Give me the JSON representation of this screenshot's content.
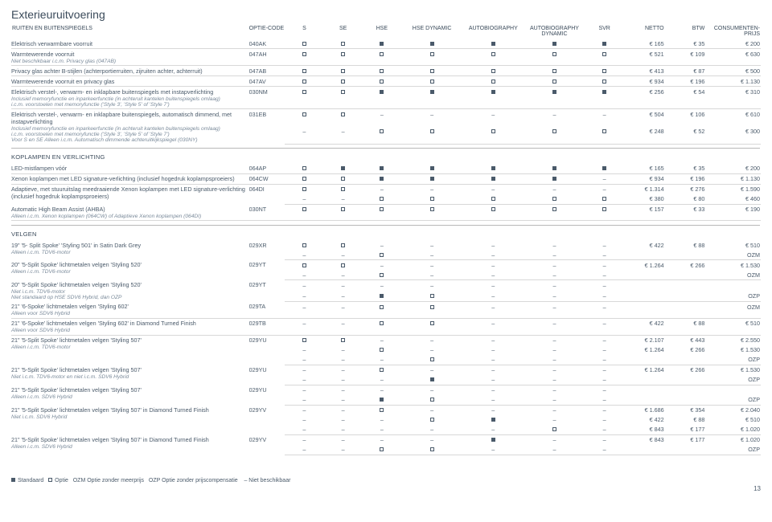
{
  "title": "Exterieuruitvoering",
  "cols": {
    "label": "RUITEN EN BUITENSPIEGELS",
    "code": "OPTIE-CODE",
    "c1": "S",
    "c2": "SE",
    "c3": "HSE",
    "c4": "HSE DYNAMIC",
    "c5": "AUTOBIOGRAPHY",
    "c6": "AUTOBIOGRAPHY DYNAMIC",
    "c7": "SVR",
    "netto": "NETTO",
    "btw": "BTW",
    "prijs": "CONSUMENTEN-PRIJS"
  },
  "sections": [
    {
      "head": null,
      "rows": [
        {
          "l": "Elektrisch verwarmbare voorruit",
          "code": "040AK",
          "m": [
            "o",
            "o",
            "f",
            "f",
            "f",
            "f",
            "f"
          ],
          "p": [
            "€ 165",
            "€ 35",
            "€ 200"
          ]
        },
        {
          "l": "Warmtewerende voorruit",
          "n": "Niet beschikbaar i.c.m. Privacy glas (047AB)",
          "code": "047AH",
          "m": [
            "o",
            "o",
            "o",
            "o",
            "o",
            "o",
            "o"
          ],
          "p": [
            "€ 521",
            "€ 109",
            "€ 630"
          ]
        },
        {
          "l": "Privacy glas achter B-stijlen (achterportierruiten, zijruiten achter, achterruit)",
          "code": "047AB",
          "m": [
            "o",
            "o",
            "o",
            "o",
            "o",
            "o",
            "o"
          ],
          "p": [
            "€ 413",
            "€ 87",
            "€ 500"
          ]
        },
        {
          "l": "Warmtewerende voorruit en privacy glas",
          "code": "047AV",
          "m": [
            "o",
            "o",
            "o",
            "o",
            "o",
            "o",
            "o"
          ],
          "p": [
            "€ 934",
            "€ 196",
            "€ 1.130"
          ]
        },
        {
          "l": "Elektrisch verstel-, verwarm- en inklapbare buitenspiegels met instapverlichting",
          "n": "Inclusief memoryfunctie en inparkeerfunctie (in achteruit kantelen buitenspiegels omlaag)\ni.c.m. voorstoelen met memoryfunctie ('Style 3', 'Style 5' of 'Style 7')",
          "code": "030NM",
          "m": [
            "o",
            "o",
            "f",
            "f",
            "f",
            "f",
            "f"
          ],
          "p": [
            "€ 256",
            "€ 54",
            "€ 310"
          ]
        },
        {
          "l": "Elektrisch verstel-, verwarm- en inklapbare buitenspiegels, automatisch dimmend, met instapverlichting",
          "n": "Inclusief memoryfunctie en inparkeerfunctie (in achteruit kantelen buitenspiegels omlaag)\ni.c.m. voorstoelen met memoryfunctie ('Style 3', 'Style 5' of 'Style 7')\nVoor S en SE Alleen i.c.m. Automatisch dimmende achteruitkijkspiegel (030NY)",
          "code": "031EB",
          "multi": [
            {
              "m": [
                "o",
                "o",
                "-",
                "-",
                "-",
                "-",
                "-"
              ],
              "p": [
                "€ 504",
                "€ 106",
                "€ 610"
              ]
            },
            {
              "m": [
                "-",
                "-",
                "o",
                "o",
                "o",
                "o",
                "o"
              ],
              "p": [
                "€ 248",
                "€ 52",
                "€ 300"
              ]
            }
          ]
        }
      ]
    },
    {
      "head": "KOPLAMPEN EN VERLICHTING",
      "rows": [
        {
          "l": "LED-mistlampen vóór",
          "code": "064AP",
          "m": [
            "o",
            "f",
            "f",
            "f",
            "f",
            "f",
            "f"
          ],
          "p": [
            "€ 165",
            "€ 35",
            "€ 200"
          ]
        },
        {
          "l": "Xenon koplampen met LED signature-verlichting (inclusief hogedruk koplampsproeiers)",
          "code": "064CW",
          "m": [
            "o",
            "o",
            "f",
            "f",
            "f",
            "f",
            "-"
          ],
          "p": [
            "€ 934",
            "€ 196",
            "€ 1.130"
          ]
        },
        {
          "l": "Adaptieve, met stuuruitslag meedraaiende Xenon koplampen met LED signature-verlichting (inclusief hogedruk koplampsproeiers)",
          "code": "064DI",
          "multi": [
            {
              "m": [
                "o",
                "o",
                "-",
                "-",
                "-",
                "-",
                "-"
              ],
              "p": [
                "€ 1.314",
                "€ 276",
                "€ 1.590"
              ]
            },
            {
              "m": [
                "-",
                "-",
                "o",
                "o",
                "o",
                "o",
                "o"
              ],
              "p": [
                "€ 380",
                "€ 80",
                "€ 460"
              ]
            }
          ]
        },
        {
          "l": "Automatic High Beam Assist (AHBA)",
          "n": "Alleen i.c.m. Xenon koplampen (064CW) of Adaptieve Xenon koplampen (064DI)",
          "code": "030NT",
          "m": [
            "o",
            "o",
            "o",
            "o",
            "o",
            "o",
            "o"
          ],
          "p": [
            "€ 157",
            "€ 33",
            "€ 190"
          ]
        }
      ]
    },
    {
      "head": "VELGEN",
      "rows": [
        {
          "l": "19\" '5- Split Spoke' 'Styling 501' in Satin Dark Grey",
          "n": "Alleen i.c.m. TDV6-motor",
          "code": "029XR",
          "multi": [
            {
              "m": [
                "o",
                "o",
                "-",
                "-",
                "-",
                "-",
                "-"
              ],
              "p": [
                "€ 422",
                "€ 88",
                "€ 510"
              ]
            },
            {
              "m": [
                "-",
                "-",
                "o",
                "-",
                "-",
                "-",
                "-"
              ],
              "p": [
                "",
                "",
                "OZM"
              ]
            }
          ]
        },
        {
          "l": "20\" '5-Split Spoke' lichtmetalen velgen 'Styling 520'",
          "n": "Alleen i.c.m. TDV6-motor",
          "code": "029YT",
          "multi": [
            {
              "m": [
                "o",
                "o",
                "-",
                "-",
                "-",
                "-",
                "-"
              ],
              "p": [
                "€ 1.264",
                "€ 266",
                "€ 1.530"
              ]
            },
            {
              "m": [
                "-",
                "-",
                "o",
                "-",
                "-",
                "-",
                "-"
              ],
              "p": [
                "",
                "",
                "OZM"
              ]
            }
          ]
        },
        {
          "l": "20\" '5-Split Spoke' lichtmetalen velgen 'Styling 520'",
          "n": "Niet i.c.m. TDV6-motor\nNiet standaard op HSE SDV6 Hybrid, dan OZP",
          "code": "029YT",
          "multi": [
            {
              "m": [
                "-",
                "-",
                "-",
                "-",
                "-",
                "-",
                "-"
              ],
              "p": [
                "",
                "",
                ""
              ]
            },
            {
              "m": [
                "-",
                "-",
                "f",
                "o",
                "-",
                "-",
                "-"
              ],
              "p": [
                "",
                "",
                "OZP"
              ]
            }
          ]
        },
        {
          "l": "21\" '6-Spoke' lichtmetalen velgen 'Styling 602'",
          "n": "Alleen voor SDV6 Hybrid",
          "code": "029TA",
          "m": [
            "-",
            "-",
            "o",
            "o",
            "-",
            "-",
            "-"
          ],
          "p": [
            "",
            "",
            "OZM"
          ]
        },
        {
          "l": "21\" '6-Spoke' lichtmetalen velgen 'Styling 602' in Diamond Turned Finish",
          "n": "Alleen voor SDV6 Hybrid",
          "code": "029TB",
          "m": [
            "-",
            "-",
            "o",
            "o",
            "-",
            "-",
            "-"
          ],
          "p": [
            "€ 422",
            "€ 88",
            "€ 510"
          ]
        },
        {
          "l": "21\" '5-Split Spoke' lichtmetalen velgen 'Styling 507'",
          "n": "Alleen i.c.m. TDV6-motor",
          "code": "029YU",
          "multi": [
            {
              "m": [
                "o",
                "o",
                "-",
                "-",
                "-",
                "-",
                "-"
              ],
              "p": [
                "€ 2.107",
                "€ 443",
                "€ 2.550"
              ]
            },
            {
              "m": [
                "-",
                "-",
                "o",
                "-",
                "-",
                "-",
                "-"
              ],
              "p": [
                "€ 1.264",
                "€ 266",
                "€ 1.530"
              ]
            },
            {
              "m": [
                "-",
                "-",
                "-",
                "o",
                "-",
                "-",
                "-"
              ],
              "p": [
                "",
                "",
                "OZP"
              ]
            }
          ]
        },
        {
          "l": "21\" '5-Split Spoke' lichtmetalen velgen 'Styling 507'",
          "n": "Niet i.c.m. TDV6-motor en niet i.c.m. SDV6 Hybrid",
          "code": "029YU",
          "multi": [
            {
              "m": [
                "-",
                "-",
                "o",
                "-",
                "-",
                "-",
                "-"
              ],
              "p": [
                "€ 1.264",
                "€ 266",
                "€ 1.530"
              ]
            },
            {
              "m": [
                "-",
                "-",
                "-",
                "f",
                "-",
                "-",
                "-"
              ],
              "p": [
                "",
                "",
                "OZP"
              ]
            }
          ]
        },
        {
          "l": "21\" '5-Split Spoke' lichtmetalen velgen 'Styling 507'",
          "n": "Alleen i.c.m. SDV6 Hybrid",
          "code": "029YU",
          "multi": [
            {
              "m": [
                "-",
                "-",
                "-",
                "-",
                "-",
                "-",
                "-"
              ],
              "p": [
                "",
                "",
                ""
              ]
            },
            {
              "m": [
                "-",
                "-",
                "f",
                "o",
                "-",
                "-",
                "-"
              ],
              "p": [
                "",
                "",
                "OZP"
              ]
            }
          ]
        },
        {
          "l": "21\" '5-Split Spoke' lichtmetalen velgen 'Styling 507' in Diamond Turned Finish",
          "n": "Niet i.c.m. SDV6 Hybrid",
          "code": "029YV",
          "multi": [
            {
              "m": [
                "-",
                "-",
                "o",
                "-",
                "-",
                "-",
                "-"
              ],
              "p": [
                "€ 1.686",
                "€ 354",
                "€ 2.040"
              ]
            },
            {
              "m": [
                "-",
                "-",
                "-",
                "o",
                "f",
                "-",
                "-"
              ],
              "p": [
                "€ 422",
                "€ 88",
                "€ 510"
              ]
            },
            {
              "m": [
                "-",
                "-",
                "-",
                "-",
                "-",
                "o",
                "-"
              ],
              "p": [
                "€ 843",
                "€ 177",
                "€ 1.020"
              ]
            }
          ]
        },
        {
          "l": "21\" '5-Split Spoke' lichtmetalen velgen 'Styling 507' in Diamond Turned Finish",
          "n": "Alleen i.c.m. SDV6 Hybrid",
          "code": "029YV",
          "multi": [
            {
              "m": [
                "-",
                "-",
                "-",
                "-",
                "f",
                "-",
                "-"
              ],
              "p": [
                "€ 843",
                "€ 177",
                "€ 1.020"
              ]
            },
            {
              "m": [
                "-",
                "-",
                "o",
                "o",
                "-",
                "-",
                "-"
              ],
              "p": [
                "",
                "",
                "OZP"
              ]
            }
          ]
        }
      ]
    }
  ],
  "legend": {
    "std": "Standaard",
    "opt": "Optie",
    "ozm": "OZM Optie zonder meerprijs",
    "ozp": "OZP Optie zonder prijscompensatie",
    "nb": "–  Niet beschikbaar"
  },
  "page": "13"
}
